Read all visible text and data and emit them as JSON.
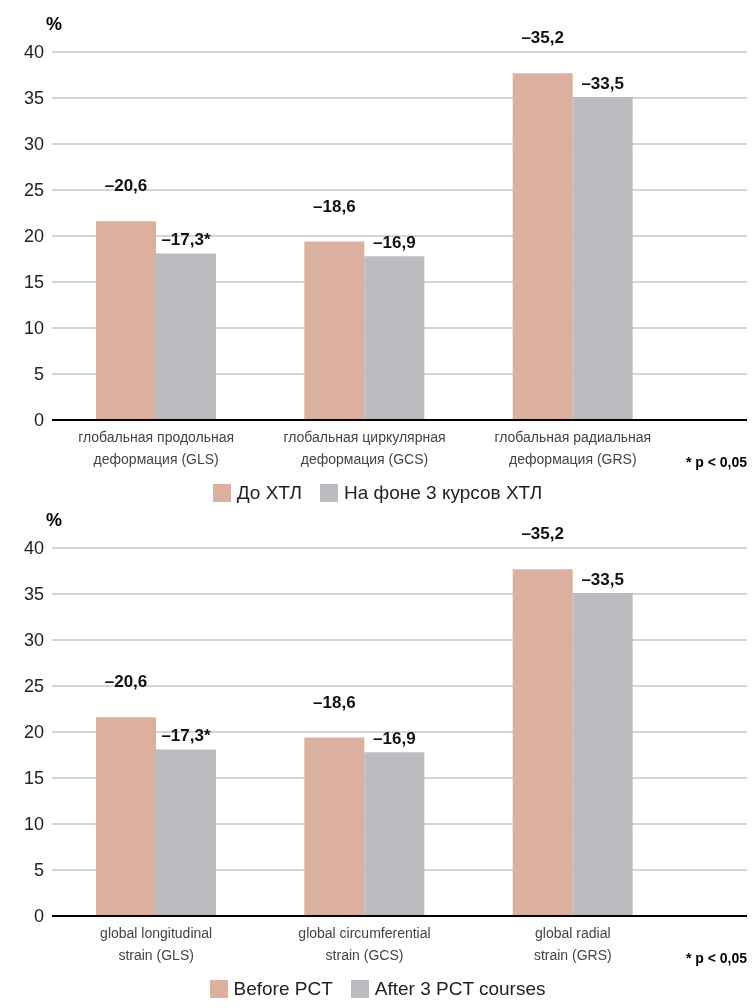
{
  "chart_data": [
    {
      "type": "bar",
      "ylabel": "%",
      "categories": [
        "глобальная продольная деформация (GLS)",
        "глобальная циркулярная деформация (GCS)",
        "глобальная радиальная деформация (GRS)"
      ],
      "series": [
        {
          "name": "До ХТЛ",
          "color": "#dcb09e",
          "values": [
            21.6,
            19.4,
            37.7
          ]
        },
        {
          "name": "На фоне 3 курсов ХТЛ",
          "color": "#bbbcc0",
          "values": [
            18.1,
            17.8,
            35.1
          ]
        }
      ],
      "ylim": [
        0,
        40
      ],
      "yticks": [
        0,
        5,
        10,
        15,
        20,
        25,
        30,
        35,
        40
      ],
      "grid": "y",
      "legend": "bottom",
      "annotations": [
        {
          "text": "–20,6",
          "x": "глобальная продольная деформация (GLS)",
          "y": 21.6
        },
        {
          "text": "–17,3*",
          "x": "глобальная продольная деформация (GLS)",
          "y": 18.1
        },
        {
          "text": "–18,6",
          "x": "глобальная циркулярная деформация (GCS)",
          "y": 19.4
        },
        {
          "text": "–16,9",
          "x": "глобальная циркулярная деформация (GCS)",
          "y": 17.8
        },
        {
          "text": "–35,2",
          "x": "глобальная радиальная деформация (GRS)",
          "y": 37.7
        },
        {
          "text": "–33,5",
          "x": "глобальная радиальная деформация (GRS)",
          "y": 35.1
        },
        "* p < 0,05"
      ]
    },
    {
      "type": "bar",
      "ylabel": "%",
      "categories": [
        "global longitudinal strain (GLS)",
        "global circumferential strain (GCS)",
        "global radial strain (GRS)"
      ],
      "series": [
        {
          "name": "Before PCT",
          "color": "#dcb09e",
          "values": [
            21.6,
            19.4,
            37.7
          ]
        },
        {
          "name": "After 3 PCT courses",
          "color": "#bbbcc0",
          "values": [
            18.1,
            17.8,
            35.1
          ]
        }
      ],
      "ylim": [
        0,
        40
      ],
      "yticks": [
        0,
        5,
        10,
        15,
        20,
        25,
        30,
        35,
        40
      ],
      "grid": "y",
      "legend": "bottom",
      "annotations": [
        {
          "text": "–20,6",
          "x": "global longitudinal strain (GLS)",
          "y": 21.6
        },
        {
          "text": "–17,3*",
          "x": "global longitudinal strain (GLS)",
          "y": 18.1
        },
        {
          "text": "–18,6",
          "x": "global circumferential strain (GCS)",
          "y": 19.4
        },
        {
          "text": "–16,9",
          "x": "global circumferential strain (GCS)",
          "y": 17.8
        },
        {
          "text": "–35,2",
          "x": "global radial strain (GRS)",
          "y": 37.7
        },
        {
          "text": "–33,5",
          "x": "global radial strain (GRS)",
          "y": 35.1
        },
        "* p < 0,05"
      ]
    }
  ]
}
